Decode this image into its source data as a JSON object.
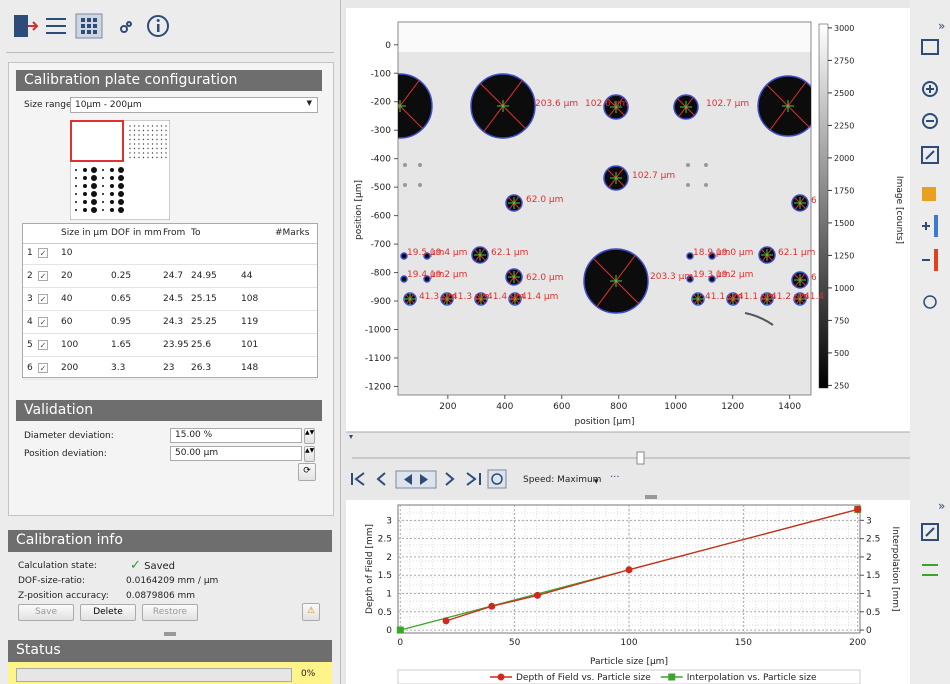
{
  "calibration_plate": {
    "title": "Calibration plate configuration",
    "size_range_label": "Size range:",
    "size_range": "10µm - 200µm",
    "table": {
      "headers": [
        "Size in µm",
        "DOF in mm",
        "From",
        "To",
        "#Marks"
      ],
      "row_numbers": [
        1,
        2,
        3,
        4,
        5,
        6
      ],
      "rows": [
        [
          10,
          null,
          null,
          null,
          null
        ],
        [
          20,
          0.25,
          24.7,
          24.95,
          44
        ],
        [
          40,
          0.65,
          24.5,
          25.15,
          108
        ],
        [
          60,
          0.95,
          24.3,
          25.25,
          119
        ],
        [
          100,
          1.65,
          23.95,
          25.6,
          101
        ],
        [
          200,
          3.3,
          23,
          26.3,
          148
        ]
      ]
    }
  },
  "validation": {
    "title": "Validation",
    "diameter_label": "Diameter deviation:",
    "diameter": "15.00 %",
    "position_label": "Position deviation:",
    "position": "50.00 µm"
  },
  "calibration_info": {
    "title": "Calibration info",
    "state_label": "Calculation state:",
    "state": "Saved",
    "ratio_label": "DOF-size-ratio:",
    "ratio": "0.0164209 mm / µm",
    "accuracy_label": "Z-position accuracy:",
    "accuracy": "0.0879806 mm",
    "buttons": [
      "Save",
      "Delete",
      "Restore"
    ]
  },
  "status": {
    "title": "Status",
    "progress_label": "0%"
  },
  "image_view": {
    "xlabel": "position [µm]",
    "ylabel": "position [µm]",
    "xlim": [
      25,
      1475
    ],
    "ylim": [
      80,
      -1230
    ],
    "xticks": [
      200,
      400,
      600,
      800,
      1000,
      1200,
      1400
    ],
    "yticks": [
      0,
      -100,
      -200,
      -300,
      -400,
      -500,
      -600,
      -700,
      -800,
      -900,
      -1000,
      -1100,
      -1200
    ],
    "colorbar": {
      "label": "Image [counts]",
      "lim": [
        230,
        3030
      ],
      "ticks": [
        3000,
        2750,
        2500,
        2250,
        2000,
        1750,
        1500,
        1250,
        1000,
        750,
        500,
        250
      ]
    },
    "annotations": [
      "203.6 µm",
      "102.6 µm",
      "102.7 µm",
      "102.7 µm",
      "62.0 µm",
      "6",
      "19.5 µm",
      "19.4 µm",
      "62.1 µm",
      "18.9 µm",
      "19.0 µm",
      "62.1 µm",
      "19.4 µm",
      "19.2 µm",
      "62.0 µm",
      "19.3 µm",
      "19.2 µm",
      "6",
      "203.3 µm",
      "41.3 µm",
      "41.3 µm",
      "41.4 µm",
      "41.4 µm",
      "41.1 µm",
      "41.1 µm",
      "41.2 µm",
      "41.4"
    ]
  },
  "playback": {
    "speed": "Speed: Maximum"
  },
  "chart_data": {
    "type": "line",
    "xlabel": "Particle size [µm]",
    "ylabel": "Depth of Field [mm]",
    "y2label": "Interpolation [mm]",
    "xlim": [
      -1,
      201
    ],
    "ylim": [
      -0.08,
      3.42
    ],
    "y2lim": [
      -0.08,
      3.42
    ],
    "xticks": [
      0,
      50,
      100,
      150,
      200
    ],
    "yticks": [
      0,
      0.5,
      1,
      1.5,
      2,
      2.5,
      3
    ],
    "y2ticks": [
      0,
      0.5,
      1,
      1.5,
      2,
      2.5,
      3
    ],
    "grid": true,
    "series": [
      {
        "name": "Depth of Field  vs. Particle size",
        "color": "#d02a1e",
        "x": [
          20,
          40,
          60,
          100,
          200
        ],
        "values": [
          0.25,
          0.65,
          0.95,
          1.65,
          3.3
        ]
      },
      {
        "name": "Interpolation  vs. Particle size",
        "color": "#3aa52a",
        "axis": "y2",
        "x": [
          0,
          200
        ],
        "values": [
          0,
          3.3
        ]
      }
    ]
  }
}
